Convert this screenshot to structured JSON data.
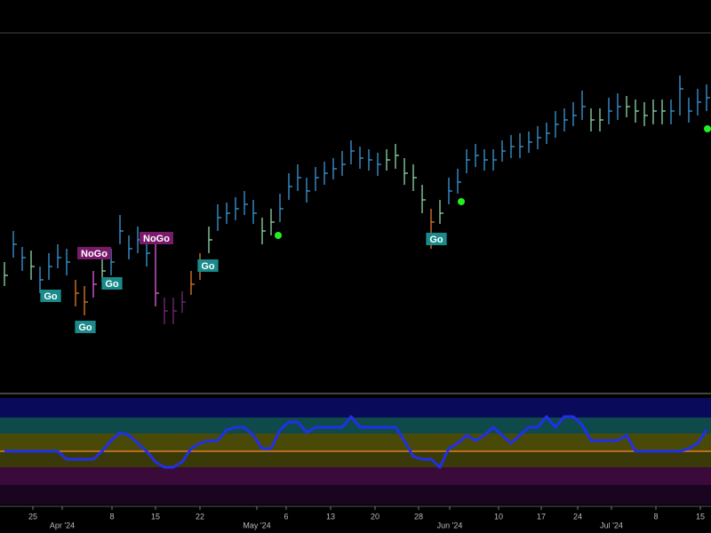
{
  "chart_data": [
    {
      "type": "ohlc",
      "x": [
        0,
        1,
        2,
        3,
        4,
        5,
        6,
        7,
        8,
        9,
        10,
        11,
        12,
        13,
        14,
        15,
        16,
        17,
        18,
        19,
        20,
        21,
        22,
        23,
        24,
        25,
        26,
        27,
        28,
        29,
        30,
        31,
        32,
        33,
        34,
        35,
        36,
        37,
        38,
        39,
        40,
        41,
        42,
        43,
        44,
        45,
        46,
        47,
        48,
        49,
        50,
        51,
        52,
        53,
        54,
        55,
        56,
        57,
        58,
        59,
        60,
        61,
        62,
        63,
        64,
        65,
        66,
        67,
        68,
        69,
        70,
        71,
        72,
        73,
        74,
        75,
        76,
        77,
        78,
        79
      ],
      "xlim": [
        -0.5,
        79.5
      ],
      "ylim": [
        0,
        400
      ],
      "series": [
        {
          "values": [
            130,
            165,
            150,
            140,
            125,
            140,
            150,
            145,
            110,
            100,
            120,
            135,
            145,
            180,
            160,
            170,
            155,
            110,
            90,
            90,
            100,
            120,
            140,
            170,
            195,
            200,
            205,
            210,
            200,
            180,
            190,
            205,
            230,
            240,
            225,
            240,
            245,
            250,
            255,
            270,
            262,
            260,
            255,
            260,
            265,
            245,
            240,
            215,
            190,
            200,
            225,
            235,
            260,
            265,
            260,
            260,
            270,
            275,
            275,
            280,
            285,
            290,
            300,
            305,
            310,
            320,
            305,
            305,
            315,
            320,
            320,
            315,
            310,
            315,
            315,
            315,
            340,
            315,
            325,
            330
          ],
          "high": [
            145,
            180,
            162,
            158,
            140,
            155,
            165,
            160,
            125,
            118,
            135,
            150,
            160,
            198,
            175,
            185,
            170,
            165,
            105,
            105,
            112,
            135,
            155,
            185,
            210,
            212,
            218,
            225,
            215,
            195,
            205,
            222,
            245,
            255,
            240,
            252,
            258,
            262,
            270,
            282,
            275,
            272,
            268,
            272,
            278,
            262,
            255,
            232,
            205,
            215,
            240,
            250,
            272,
            278,
            272,
            272,
            282,
            288,
            290,
            292,
            298,
            302,
            315,
            318,
            325,
            338,
            318,
            318,
            330,
            335,
            332,
            328,
            325,
            328,
            328,
            328,
            355,
            330,
            340,
            345
          ],
          "low": [
            118,
            150,
            135,
            125,
            110,
            125,
            138,
            130,
            95,
            85,
            105,
            122,
            130,
            165,
            148,
            155,
            140,
            95,
            75,
            75,
            88,
            108,
            125,
            155,
            180,
            188,
            192,
            198,
            188,
            165,
            175,
            190,
            215,
            225,
            212,
            225,
            232,
            238,
            242,
            255,
            250,
            248,
            242,
            248,
            250,
            232,
            225,
            200,
            160,
            188,
            210,
            222,
            245,
            252,
            248,
            248,
            258,
            262,
            262,
            268,
            272,
            278,
            285,
            292,
            298,
            305,
            292,
            292,
            300,
            305,
            308,
            302,
            298,
            300,
            300,
            300,
            310,
            302,
            310,
            315
          ],
          "colors": [
            "#8fd9a8",
            "#3a9ad9",
            "#3a9ad9",
            "#8fd9a8",
            "#3a9ad9",
            "#3a9ad9",
            "#3a9ad9",
            "#3a9ad9",
            "#e07b2a",
            "#e07b2a",
            "#e060e0",
            "#8fd9a8",
            "#3a9ad9",
            "#3a9ad9",
            "#3a9ad9",
            "#3a9ad9",
            "#3a9ad9",
            "#e060e0",
            "#7a2a7a",
            "#7a2a7a",
            "#7a2a7a",
            "#e07b2a",
            "#e07b2a",
            "#8fd9a8",
            "#3a9ad9",
            "#3a9ad9",
            "#3a9ad9",
            "#3a9ad9",
            "#3a9ad9",
            "#8fd9a8",
            "#8fd9a8",
            "#3a9ad9",
            "#3a9ad9",
            "#3a9ad9",
            "#3a9ad9",
            "#3a9ad9",
            "#3a9ad9",
            "#3a9ad9",
            "#3a9ad9",
            "#3a9ad9",
            "#3a9ad9",
            "#3a9ad9",
            "#3a9ad9",
            "#8fd9a8",
            "#8fd9a8",
            "#8fd9a8",
            "#8fd9a8",
            "#8fd9a8",
            "#e07b2a",
            "#8fd9a8",
            "#3a9ad9",
            "#3a9ad9",
            "#3a9ad9",
            "#3a9ad9",
            "#3a9ad9",
            "#3a9ad9",
            "#3a9ad9",
            "#3a9ad9",
            "#3a9ad9",
            "#3a9ad9",
            "#3a9ad9",
            "#3a9ad9",
            "#3a9ad9",
            "#3a9ad9",
            "#3a9ad9",
            "#3a9ad9",
            "#8fd9a8",
            "#8fd9a8",
            "#3a9ad9",
            "#3a9ad9",
            "#8fd9a8",
            "#8fd9a8",
            "#8fd9a8",
            "#8fd9a8",
            "#8fd9a8",
            "#3a9ad9",
            "#3a9ad9",
            "#3a9ad9",
            "#3a9ad9",
            "#3a9ad9"
          ]
        }
      ],
      "annotations": [
        {
          "text": "Go",
          "x": 5.2,
          "y": 107,
          "color": "#1a8a8a"
        },
        {
          "text": "Go",
          "x": 9.1,
          "y": 72,
          "color": "#1a8a8a"
        },
        {
          "text": "Go",
          "x": 12.1,
          "y": 121,
          "color": "#1a8a8a"
        },
        {
          "text": "NoGo",
          "x": 10.1,
          "y": 155,
          "color": "#7a1a6a"
        },
        {
          "text": "NoGo",
          "x": 17.1,
          "y": 172,
          "color": "#7a1a6a"
        },
        {
          "text": "Go",
          "x": 22.9,
          "y": 141,
          "color": "#1a8a8a"
        },
        {
          "text": "Go",
          "x": 48.6,
          "y": 171,
          "color": "#1a8a8a"
        }
      ],
      "signals": {
        "color": "#22ee22",
        "x": [
          30.8,
          51.4,
          79.1
        ],
        "y": [
          175,
          213,
          295
        ]
      }
    },
    {
      "type": "line",
      "x": [
        0,
        1,
        2,
        3,
        4,
        5,
        6,
        7,
        8,
        9,
        10,
        11,
        12,
        13,
        14,
        15,
        16,
        17,
        18,
        19,
        20,
        21,
        22,
        23,
        24,
        25,
        26,
        27,
        28,
        29,
        30,
        31,
        32,
        33,
        34,
        35,
        36,
        37,
        38,
        39,
        40,
        41,
        42,
        43,
        44,
        45,
        46,
        47,
        48,
        49,
        50,
        51,
        52,
        53,
        54,
        55,
        56,
        57,
        58,
        59,
        60,
        61,
        62,
        63,
        64,
        65,
        66,
        67,
        68,
        69,
        70,
        71,
        72,
        73,
        74,
        75,
        76,
        77,
        78,
        79
      ],
      "xlim": [
        -0.5,
        79.5
      ],
      "ylim": [
        -10,
        10
      ],
      "series": [
        {
          "color": "#2030e8",
          "values": [
            0,
            0,
            0,
            0,
            0,
            0,
            0,
            -1.5,
            -1.5,
            -1.5,
            -1.5,
            0,
            2,
            3.5,
            3,
            1.5,
            0,
            -2,
            -3,
            -3,
            -2,
            0.5,
            1.5,
            2,
            2,
            4,
            4.5,
            4.5,
            3,
            0.5,
            0.5,
            4,
            5.5,
            5.5,
            3.5,
            4.5,
            4.5,
            4.5,
            4.5,
            6.5,
            4.5,
            4.5,
            4.5,
            4.5,
            4.5,
            2,
            -1,
            -1.5,
            -1.5,
            -3,
            0.5,
            1.5,
            3,
            2,
            3,
            4.5,
            3,
            1.5,
            3,
            4.5,
            4.5,
            6.5,
            4.5,
            6.5,
            6.5,
            5,
            2,
            2,
            2,
            2,
            3,
            0,
            0,
            0,
            0,
            0,
            0,
            0.5,
            1.5,
            4
          ]
        }
      ],
      "zero_line_color": "#e07b2a",
      "xticks": [
        {
          "value": 3.2,
          "label": "25"
        },
        {
          "value": 6.5,
          "label": "Apr '24"
        },
        {
          "value": 12.1,
          "label": "8"
        },
        {
          "value": 17,
          "label": "15"
        },
        {
          "value": 22,
          "label": "22"
        },
        {
          "value": 28.4,
          "label": "May '24"
        },
        {
          "value": 31.7,
          "label": "6"
        },
        {
          "value": 36.7,
          "label": "13"
        },
        {
          "value": 41.7,
          "label": "20"
        },
        {
          "value": 46.6,
          "label": "28"
        },
        {
          "value": 50.1,
          "label": "Jun '24"
        },
        {
          "value": 55.6,
          "label": "10"
        },
        {
          "value": 60.4,
          "label": "17"
        },
        {
          "value": 64.5,
          "label": "24"
        },
        {
          "value": 68.3,
          "label": "Jul '24"
        },
        {
          "value": 73.3,
          "label": "8"
        },
        {
          "value": 78.3,
          "label": "15"
        }
      ]
    }
  ]
}
